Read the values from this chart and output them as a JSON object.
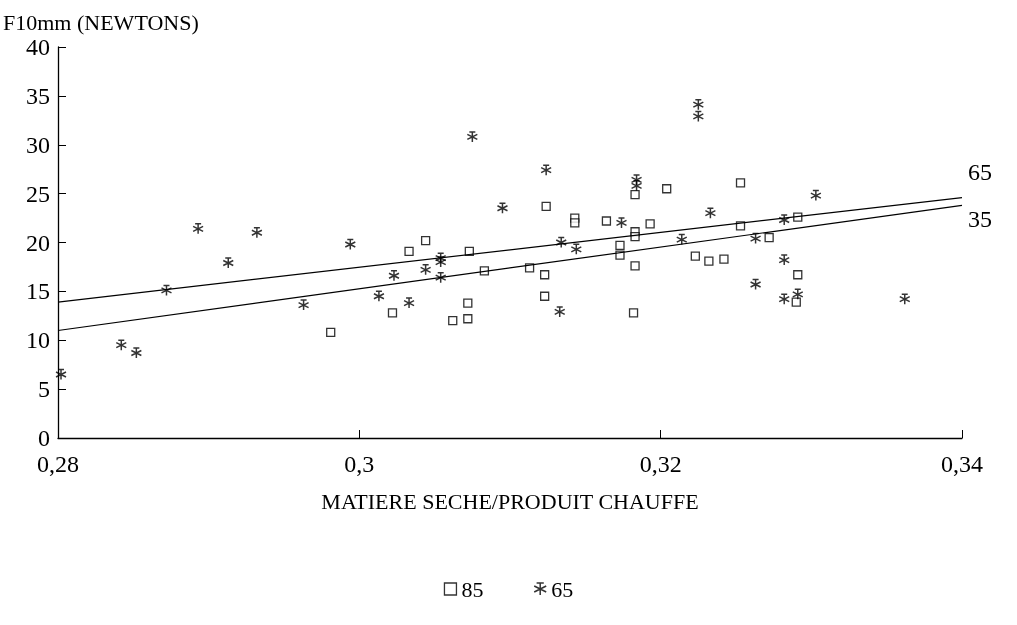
{
  "chart_data": {
    "type": "scatter",
    "ylabel": "F10mm (NEWTONS)",
    "xlabel": "MATIERE SECHE/PRODUIT CHAUFFE",
    "xlim": [
      0.28,
      0.34
    ],
    "xticks": [
      {
        "value": 0.28,
        "label": "0,28"
      },
      {
        "value": 0.3,
        "label": "0,3"
      },
      {
        "value": 0.32,
        "label": "0,32"
      },
      {
        "value": 0.34,
        "label": "0,34"
      }
    ],
    "ylim": [
      0,
      40
    ],
    "yticks": [
      0,
      5,
      10,
      15,
      20,
      25,
      30,
      35,
      40
    ],
    "grid": false,
    "legend": "bottom",
    "series": [
      {
        "name": "85",
        "marker": "square",
        "color": "#000000",
        "x": [
          0.2981,
          0.3022,
          0.3033,
          0.3044,
          0.3062,
          0.3072,
          0.3072,
          0.3073,
          0.3083,
          0.3113,
          0.3123,
          0.3123,
          0.3124,
          0.3143,
          0.3143,
          0.3164,
          0.3173,
          0.3173,
          0.3183,
          0.3183,
          0.3183,
          0.3183,
          0.3182,
          0.3193,
          0.3204,
          0.3253,
          0.3253,
          0.3223,
          0.3232,
          0.3242,
          0.3272,
          0.3291,
          0.3291,
          0.329
        ],
        "values": [
          10.8,
          12.8,
          19.1,
          20.2,
          12.0,
          12.2,
          13.8,
          19.1,
          17.1,
          17.4,
          16.7,
          14.5,
          23.7,
          22.5,
          22.0,
          22.2,
          19.7,
          18.7,
          24.9,
          21.1,
          20.6,
          17.6,
          12.8,
          21.9,
          25.5,
          26.1,
          21.7,
          18.6,
          18.1,
          18.3,
          20.5,
          22.6,
          16.7,
          13.9
        ]
      },
      {
        "name": "65",
        "marker": "cross",
        "color": "#000000",
        "x": [
          0.2802,
          0.2842,
          0.2852,
          0.2872,
          0.2893,
          0.2913,
          0.2932,
          0.2963,
          0.2994,
          0.3013,
          0.3023,
          0.3033,
          0.3044,
          0.3054,
          0.3054,
          0.3054,
          0.3075,
          0.3095,
          0.3124,
          0.3134,
          0.3133,
          0.3144,
          0.3174,
          0.3184,
          0.3184,
          0.3214,
          0.3225,
          0.3225,
          0.3233,
          0.3263,
          0.3282,
          0.3282,
          0.3263,
          0.3282,
          0.3291,
          0.3303,
          0.3362
        ],
        "values": [
          6.5,
          9.5,
          8.7,
          15.1,
          21.4,
          17.9,
          21.0,
          13.6,
          19.8,
          14.5,
          16.6,
          13.8,
          17.2,
          18.4,
          18.0,
          16.4,
          30.8,
          23.5,
          27.4,
          20.0,
          12.9,
          19.3,
          22.0,
          26.4,
          25.8,
          20.3,
          34.1,
          32.9,
          23.0,
          20.4,
          22.3,
          18.2,
          15.7,
          14.2,
          14.7,
          24.8,
          14.2
        ]
      },
      {
        "type": "line",
        "color": "#000000",
        "x": [
          0.28,
          0.34
        ],
        "values": [
          13.9,
          24.6
        ]
      },
      {
        "type": "line",
        "color": "#000000",
        "x": [
          0.28,
          0.34
        ],
        "values": [
          11.0,
          23.8
        ]
      }
    ],
    "annotations": [
      {
        "text": "65",
        "x": 0.34,
        "y": 24.6
      },
      {
        "text": "35",
        "x": 0.34,
        "y": 23.8
      }
    ]
  }
}
